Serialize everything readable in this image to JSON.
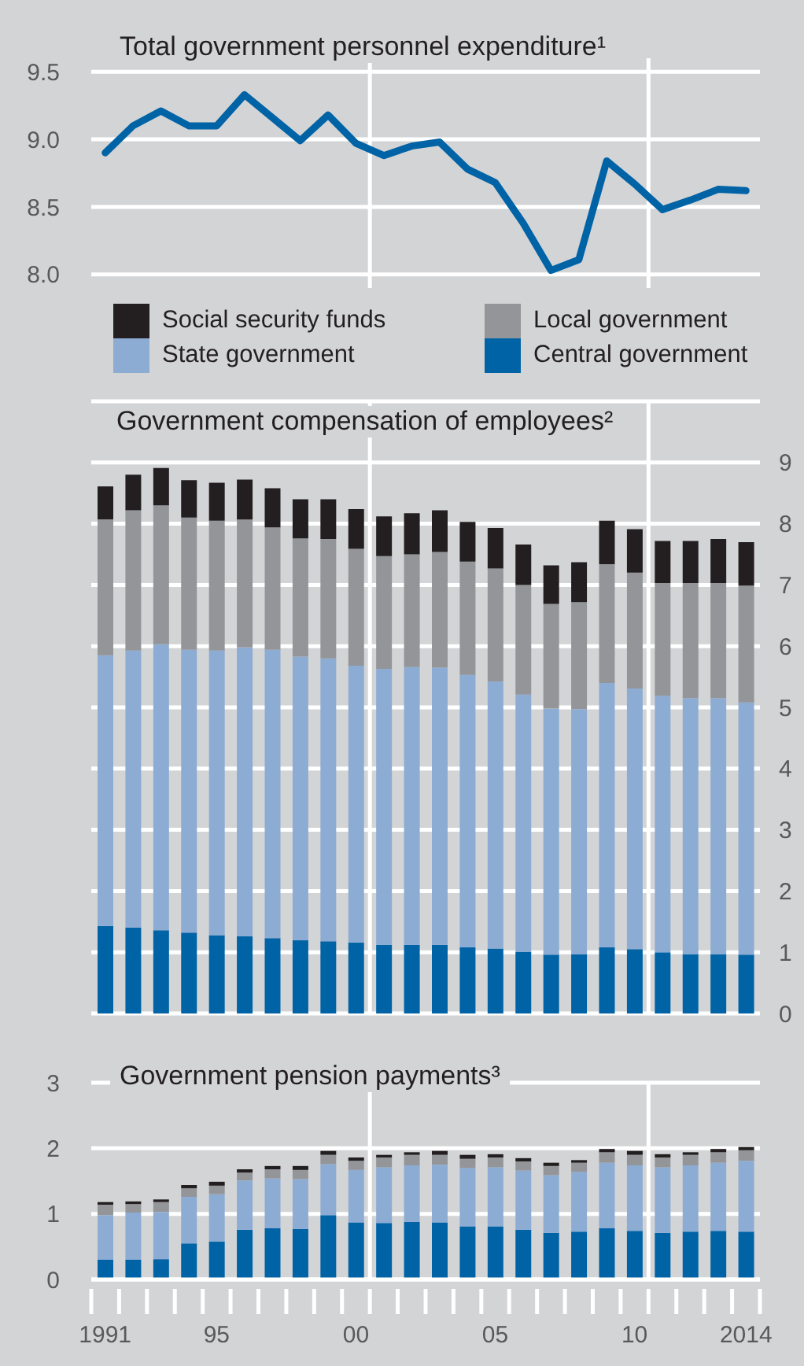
{
  "chart_data": [
    {
      "type": "line",
      "title": "Total government personnel expenditure¹",
      "x": [
        1991,
        1992,
        1993,
        1994,
        1995,
        1996,
        1997,
        1998,
        1999,
        2000,
        2001,
        2002,
        2003,
        2004,
        2005,
        2006,
        2007,
        2008,
        2009,
        2010,
        2011,
        2012,
        2013,
        2014
      ],
      "values": [
        8.9,
        9.1,
        9.21,
        9.1,
        9.1,
        9.33,
        9.16,
        8.99,
        9.18,
        8.97,
        8.88,
        8.95,
        8.98,
        8.78,
        8.68,
        8.38,
        8.03,
        8.11,
        8.84,
        8.67,
        8.48,
        8.55,
        8.63,
        8.62
      ],
      "color": "#0063a6",
      "xlim": [
        1990.5,
        2014.5
      ],
      "ylim": [
        7.9,
        9.6
      ],
      "yticks": [
        {
          "value": 8,
          "label": "8.0"
        },
        8.5,
        {
          "value": 9,
          "label": "9.0"
        },
        9.5
      ],
      "grid": "y",
      "tick_labels": "y",
      "ref_lines": [
        {
          "axis": "x",
          "value": 2000.5,
          "color": "#ffffff"
        },
        {
          "axis": "x",
          "value": 2010.5,
          "color": "#ffffff"
        }
      ]
    },
    {
      "type": "bar",
      "title": "Government compensation of employees²",
      "stacked": true,
      "legend": "top",
      "x": [
        1991,
        1992,
        1993,
        1994,
        1995,
        1996,
        1997,
        1998,
        1999,
        2000,
        2001,
        2002,
        2003,
        2004,
        2005,
        2006,
        2007,
        2008,
        2009,
        2010,
        2011,
        2012,
        2013,
        2014
      ],
      "series": [
        {
          "name": "Central government",
          "color": "#0063a6",
          "values": [
            1.43,
            1.4,
            1.36,
            1.32,
            1.28,
            1.26,
            1.23,
            1.2,
            1.18,
            1.16,
            1.12,
            1.12,
            1.12,
            1.08,
            1.06,
            1.01,
            0.96,
            0.97,
            1.08,
            1.05,
            1.0,
            0.97,
            0.97,
            0.96
          ]
        },
        {
          "name": "State government",
          "color": "#8cacd4",
          "values": [
            4.42,
            4.53,
            4.67,
            4.62,
            4.65,
            4.72,
            4.71,
            4.63,
            4.62,
            4.52,
            4.51,
            4.54,
            4.53,
            4.45,
            4.36,
            4.2,
            4.02,
            4.0,
            4.32,
            4.26,
            4.19,
            4.18,
            4.18,
            4.12
          ]
        },
        {
          "name": "Local government",
          "color": "#939598",
          "values": [
            2.22,
            2.29,
            2.27,
            2.16,
            2.12,
            2.09,
            2.0,
            1.93,
            1.95,
            1.91,
            1.84,
            1.84,
            1.89,
            1.85,
            1.85,
            1.79,
            1.71,
            1.75,
            1.94,
            1.89,
            1.84,
            1.88,
            1.88,
            1.91
          ]
        },
        {
          "name": "Social security funds",
          "color": "#231f20",
          "values": [
            0.54,
            0.58,
            0.61,
            0.61,
            0.62,
            0.65,
            0.64,
            0.64,
            0.65,
            0.65,
            0.65,
            0.67,
            0.68,
            0.65,
            0.66,
            0.66,
            0.63,
            0.65,
            0.71,
            0.71,
            0.69,
            0.69,
            0.72,
            0.71
          ]
        }
      ],
      "xlim": [
        1990.5,
        2014.5
      ],
      "ylim": [
        0,
        10
      ],
      "yticks": [
        0,
        1,
        2,
        3,
        4,
        5,
        6,
        7,
        8,
        9,
        {
          "value": 10,
          "label": null
        }
      ],
      "grid": "y",
      "tick_labels": "y",
      "ref_lines": [
        {
          "axis": "x",
          "value": 2000.5,
          "color": "#ffffff"
        },
        {
          "axis": "x",
          "value": 2010.5,
          "color": "#ffffff"
        }
      ]
    },
    {
      "type": "bar",
      "title": "Government pension payments³",
      "stacked": true,
      "x": [
        1991,
        1992,
        1993,
        1994,
        1995,
        1996,
        1997,
        1998,
        1999,
        2000,
        2001,
        2002,
        2003,
        2004,
        2005,
        2006,
        2007,
        2008,
        2009,
        2010,
        2011,
        2012,
        2013,
        2014
      ],
      "series": [
        {
          "color": "#0063a6",
          "values": [
            0.3,
            0.3,
            0.31,
            0.55,
            0.58,
            0.76,
            0.78,
            0.77,
            0.98,
            0.87,
            0.86,
            0.88,
            0.87,
            0.81,
            0.81,
            0.76,
            0.71,
            0.73,
            0.78,
            0.74,
            0.71,
            0.73,
            0.74,
            0.73
          ]
        },
        {
          "color": "#8cacd4",
          "values": [
            0.68,
            0.72,
            0.72,
            0.71,
            0.72,
            0.75,
            0.76,
            0.76,
            0.78,
            0.8,
            0.85,
            0.86,
            0.88,
            0.89,
            0.9,
            0.9,
            0.88,
            0.91,
            1.0,
            1.0,
            1.0,
            1.01,
            1.04,
            1.08
          ]
        },
        {
          "color": "#939598",
          "values": [
            0.16,
            0.13,
            0.15,
            0.13,
            0.13,
            0.12,
            0.14,
            0.14,
            0.14,
            0.14,
            0.15,
            0.16,
            0.15,
            0.14,
            0.15,
            0.14,
            0.14,
            0.14,
            0.16,
            0.16,
            0.15,
            0.16,
            0.16,
            0.16
          ]
        },
        {
          "color": "#231f20",
          "values": [
            0.04,
            0.04,
            0.04,
            0.05,
            0.06,
            0.05,
            0.05,
            0.06,
            0.06,
            0.05,
            0.04,
            0.04,
            0.06,
            0.06,
            0.05,
            0.05,
            0.05,
            0.04,
            0.05,
            0.06,
            0.05,
            0.04,
            0.05,
            0.05
          ]
        }
      ],
      "xlim": [
        1990.5,
        2014.5
      ],
      "xticks": [
        {
          "value": 1990.5,
          "label": null
        },
        {
          "value": 1991,
          "label": "1991"
        },
        {
          "value": 1991.5,
          "label": null
        },
        {
          "value": 1992.5,
          "label": null
        },
        {
          "value": 1993.5,
          "label": null
        },
        {
          "value": 1994.5,
          "label": null
        },
        {
          "value": 1995,
          "label": "95"
        },
        {
          "value": 1995.5,
          "label": null
        },
        {
          "value": 1996.5,
          "label": null
        },
        {
          "value": 1997.5,
          "label": null
        },
        {
          "value": 1998.5,
          "label": null
        },
        {
          "value": 1999.5,
          "label": null
        },
        {
          "value": 2000,
          "label": "00"
        },
        {
          "value": 2000.5,
          "label": null
        },
        {
          "value": 2001.5,
          "label": null
        },
        {
          "value": 2002.5,
          "label": null
        },
        {
          "value": 2003.5,
          "label": null
        },
        {
          "value": 2004.5,
          "label": null
        },
        {
          "value": 2005,
          "label": "05"
        },
        {
          "value": 2005.5,
          "label": null
        },
        {
          "value": 2006.5,
          "label": null
        },
        {
          "value": 2007.5,
          "label": null
        },
        {
          "value": 2008.5,
          "label": null
        },
        {
          "value": 2009.5,
          "label": null
        },
        {
          "value": 2010,
          "label": "10"
        },
        {
          "value": 2010.5,
          "label": null
        },
        {
          "value": 2011.5,
          "label": null
        },
        {
          "value": 2012.5,
          "label": null
        },
        {
          "value": 2013.5,
          "label": null
        },
        {
          "value": 2014,
          "label": "2014"
        },
        {
          "value": 2014.5,
          "label": null
        }
      ],
      "ylim": [
        0,
        3
      ],
      "yticks": [
        0,
        1,
        2,
        3
      ],
      "grid": "y",
      "ref_lines": [
        {
          "axis": "x",
          "value": 2000.5,
          "color": "#ffffff"
        },
        {
          "axis": "x",
          "value": 2010.5,
          "color": "#ffffff"
        }
      ]
    }
  ]
}
